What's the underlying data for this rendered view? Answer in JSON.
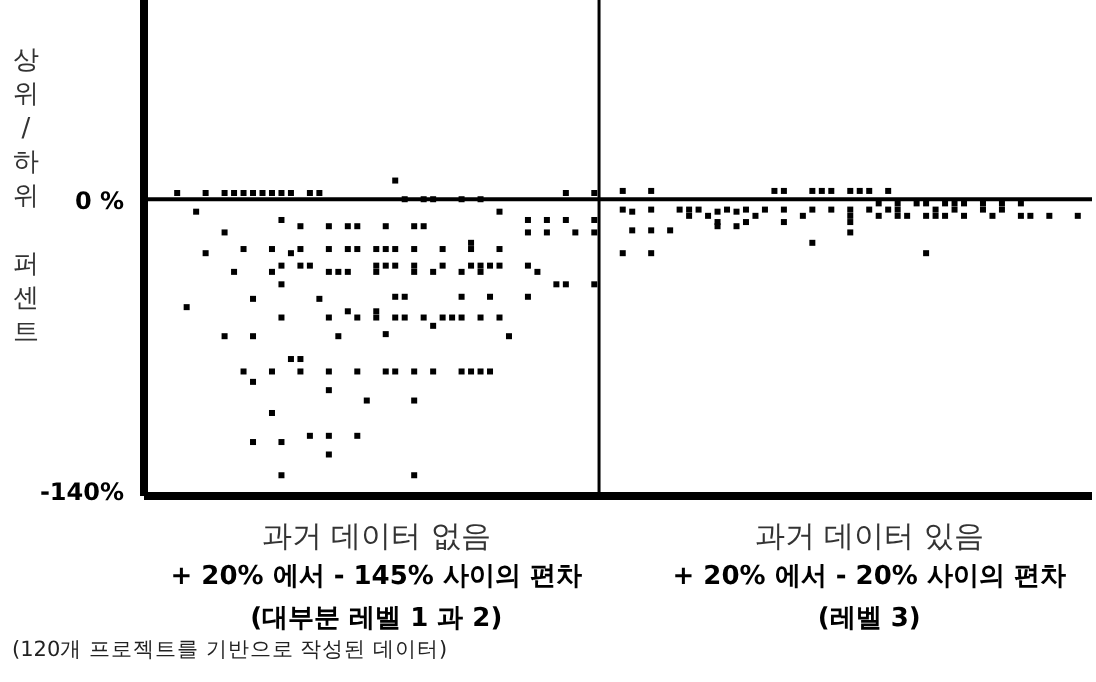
{
  "chart_data": {
    "type": "scatter",
    "ylabel": "상위/하위 퍼센트",
    "marker": "square",
    "categories": [
      null,
      null,
      null,
      null,
      null,
      null,
      null,
      null,
      null,
      null,
      null,
      null,
      null,
      null,
      null,
      null,
      null,
      null,
      null,
      null,
      null,
      null,
      null,
      null,
      "과거 데이터 없음\n+ 20% 에서 - 145% 사이의 편차\n(대부분 레벨 1 과 2)",
      null,
      null,
      null,
      null,
      null,
      null,
      null,
      null,
      null,
      null,
      null,
      null,
      null,
      null,
      null,
      null,
      null,
      null,
      null,
      null,
      null,
      null,
      null,
      null,
      null,
      null,
      null,
      null,
      null,
      null,
      null,
      null,
      null,
      null,
      null,
      null,
      null,
      null,
      null,
      null,
      null,
      null,
      null,
      null,
      null,
      null,
      null,
      null,
      null,
      null,
      null,
      "과거 데이터 있음\n+ 20% 에서 - 20% 사이의 편차\n(레벨 3)",
      null,
      null,
      null,
      null,
      null,
      null,
      null,
      null,
      null,
      null,
      null,
      null,
      null,
      null,
      null,
      null,
      null,
      null,
      null,
      null,
      null,
      null,
      null
    ],
    "ylim": [
      -143,
      96
    ],
    "yticks": [
      {
        "value": 0,
        "label": "0 %"
      },
      {
        "value": -140,
        "label": "-140%"
      }
    ],
    "ref_lines": [
      {
        "axis": "y",
        "value": 0,
        "color": "#000000"
      }
    ],
    "annotations": [
      "(120개 프로젝트를 기반으로 작성된 데이터)"
    ],
    "series": [
      {
        "color": "#000000",
        "values": [
          null,
          null,
          null,
          3,
          -52,
          -6,
          3,
          null,
          3,
          3,
          3,
          -48,
          3,
          3,
          3,
          3,
          -13,
          3,
          3,
          -13,
          -35,
          -13,
          -13,
          -97,
          -32,
          -13,
          9,
          0,
          -13,
          0,
          0,
          -24,
          -57,
          0,
          -21,
          0,
          -47,
          -6,
          -66,
          null,
          -10,
          -35,
          -10,
          -41,
          3,
          -16,
          null,
          3,
          null,
          null,
          4,
          -6,
          null,
          4,
          null,
          -15,
          -5,
          -5,
          -5,
          -8,
          -6,
          -5,
          -6,
          -5,
          -8,
          -5,
          4,
          4,
          null,
          -8,
          4,
          4,
          4,
          null,
          4,
          4,
          4,
          -2,
          4,
          -2,
          -8,
          -2,
          -2,
          -5,
          -2,
          -2,
          -2,
          null,
          -2,
          -8,
          -2,
          null,
          -2,
          -8,
          null,
          -8,
          null,
          null,
          -8,
          null
        ]
      },
      {
        "color": "#000000",
        "values": [
          null,
          null,
          null,
          null,
          null,
          null,
          -26,
          null,
          -16,
          -35,
          -24,
          -66,
          null,
          -24,
          null,
          -26,
          -24,
          -32,
          -48,
          -24,
          -66,
          -35,
          -24,
          null,
          -35,
          -24,
          -24,
          -47,
          -24,
          -13,
          -35,
          -32,
          null,
          -35,
          -24,
          -32,
          -83,
          -24,
          null,
          null,
          -16,
          null,
          -16,
          null,
          -10,
          null,
          null,
          -10,
          null,
          null,
          -5,
          -15,
          null,
          -5,
          null,
          null,
          null,
          -8,
          null,
          null,
          -11,
          null,
          -13,
          -11,
          null,
          null,
          null,
          -5,
          null,
          null,
          -5,
          null,
          -5,
          null,
          -5,
          null,
          -5,
          -8,
          -5,
          -5,
          null,
          null,
          -8,
          -8,
          -8,
          -5,
          -8,
          null,
          -5,
          null,
          -5,
          null,
          -8,
          null,
          null,
          null,
          null,
          null,
          null,
          null
        ]
      },
      {
        "color": "#000000",
        "values": [
          null,
          null,
          null,
          null,
          null,
          null,
          null,
          null,
          -66,
          null,
          -83,
          -88,
          null,
          -35,
          -10,
          -77,
          -32,
          -114,
          null,
          -35,
          null,
          -54,
          null,
          null,
          -54,
          null,
          null,
          -57,
          -32,
          -57,
          -61,
          -57,
          null,
          -47,
          -32,
          -35,
          -32,
          -32,
          null,
          null,
          -32,
          null,
          null,
          null,
          -41,
          null,
          null,
          -16,
          null,
          null,
          -26,
          null,
          null,
          -15,
          null,
          null,
          null,
          null,
          null,
          null,
          -13,
          null,
          null,
          null,
          null,
          null,
          null,
          -11,
          null,
          null,
          -21,
          null,
          null,
          null,
          -8,
          null,
          null,
          null,
          null,
          -8,
          null,
          null,
          -26,
          null,
          null,
          null,
          null,
          null,
          null,
          null,
          null,
          null,
          null,
          null,
          null,
          null,
          null,
          null,
          null,
          null
        ]
      },
      {
        "color": "#000000",
        "values": [
          null,
          null,
          null,
          null,
          null,
          null,
          null,
          null,
          null,
          null,
          null,
          -117,
          null,
          -83,
          -32,
          null,
          -77,
          null,
          null,
          -57,
          null,
          -24,
          -57,
          null,
          -57,
          -65,
          -32,
          null,
          -35,
          null,
          -83,
          null,
          null,
          -57,
          -83,
          -57,
          null,
          null,
          null,
          null,
          -47,
          null,
          null,
          null,
          null,
          null,
          null,
          -41,
          null,
          null,
          null,
          null,
          null,
          -26,
          null,
          null,
          null,
          null,
          null,
          null,
          null,
          null,
          null,
          null,
          null,
          null,
          null,
          null,
          null,
          null,
          null,
          null,
          null,
          null,
          -11,
          null,
          null,
          null,
          null,
          null,
          null,
          null,
          null,
          null,
          null,
          null,
          null,
          null,
          null,
          null,
          null,
          null,
          null,
          null,
          null,
          null,
          null,
          null,
          null,
          null
        ]
      },
      {
        "color": "#000000",
        "values": [
          null,
          null,
          null,
          null,
          null,
          null,
          null,
          null,
          null,
          null,
          null,
          3,
          null,
          -103,
          -41,
          null,
          -83,
          null,
          null,
          -83,
          null,
          null,
          -83,
          null,
          -24,
          -83,
          -47,
          null,
          -83,
          null,
          null,
          null,
          null,
          -83,
          null,
          -83,
          null,
          -57,
          null,
          null,
          null,
          null,
          null,
          null,
          null,
          null,
          null,
          null,
          null,
          null,
          null,
          null,
          null,
          null,
          null,
          null,
          null,
          null,
          null,
          null,
          null,
          null,
          null,
          null,
          null,
          null,
          null,
          null,
          null,
          null,
          null,
          null,
          null,
          null,
          -16,
          null,
          null,
          null,
          null,
          null,
          null,
          null,
          null,
          null,
          null,
          null,
          null,
          null,
          null,
          null,
          null,
          null,
          null,
          null,
          null,
          null,
          null,
          null,
          null,
          null
        ]
      },
      {
        "color": "#000000",
        "values": [
          null,
          null,
          null,
          null,
          null,
          null,
          null,
          null,
          null,
          null,
          null,
          null,
          null,
          null,
          -57,
          null,
          null,
          null,
          null,
          -92,
          null,
          null,
          -114,
          null,
          null,
          -32,
          -57,
          null,
          -97,
          null,
          null,
          null,
          null,
          null,
          null,
          null,
          null,
          null,
          null,
          null,
          null,
          null,
          null,
          null,
          null,
          null,
          null,
          null,
          null,
          null,
          null,
          null,
          null,
          null,
          null,
          null,
          null,
          null,
          null,
          null,
          null,
          null,
          null,
          null,
          null,
          null,
          null,
          null,
          null,
          null,
          null,
          null,
          null,
          null,
          null,
          null,
          null,
          null,
          null,
          null,
          null,
          null,
          null,
          null,
          null,
          null,
          null,
          null,
          null,
          null,
          null,
          null,
          null,
          null,
          null,
          null,
          null,
          null,
          null,
          null
        ]
      },
      {
        "color": "#000000",
        "values": [
          null,
          null,
          null,
          null,
          null,
          null,
          null,
          null,
          null,
          null,
          null,
          null,
          null,
          null,
          -117,
          null,
          null,
          null,
          null,
          -114,
          null,
          null,
          null,
          null,
          null,
          null,
          -83,
          null,
          -133,
          null,
          null,
          null,
          null,
          null,
          null,
          null,
          null,
          null,
          null,
          null,
          null,
          null,
          null,
          null,
          null,
          null,
          null,
          null,
          null,
          null,
          null,
          null,
          null,
          null,
          null,
          null,
          null,
          null,
          null,
          null,
          null,
          null,
          null,
          null,
          null,
          null,
          null,
          null,
          null,
          null,
          null,
          null,
          null,
          null,
          null,
          null,
          null,
          null,
          null,
          null,
          null,
          null,
          null,
          null,
          null,
          null,
          null,
          null,
          null,
          null,
          null,
          null,
          null,
          null,
          null,
          null,
          null,
          null,
          null,
          null
        ]
      },
      {
        "color": "#000000",
        "values": [
          null,
          null,
          null,
          null,
          null,
          null,
          null,
          null,
          null,
          null,
          null,
          null,
          null,
          null,
          -133,
          null,
          null,
          null,
          null,
          -123,
          null,
          null,
          null,
          null,
          null,
          null,
          null,
          null,
          null,
          null,
          null,
          null,
          null,
          null,
          null,
          null,
          null,
          null,
          null,
          null,
          null,
          null,
          null,
          null,
          null,
          null,
          null,
          null,
          null,
          null,
          null,
          null,
          null,
          null,
          null,
          null,
          null,
          null,
          null,
          null,
          null,
          null,
          null,
          null,
          null,
          null,
          null,
          null,
          null,
          null,
          null,
          null,
          null,
          null,
          null,
          null,
          null,
          null,
          null,
          null,
          null,
          null,
          null,
          null,
          null,
          null,
          null,
          null,
          null,
          null,
          null,
          null,
          null,
          null,
          null,
          null,
          null,
          null,
          null,
          null
        ]
      }
    ]
  }
}
